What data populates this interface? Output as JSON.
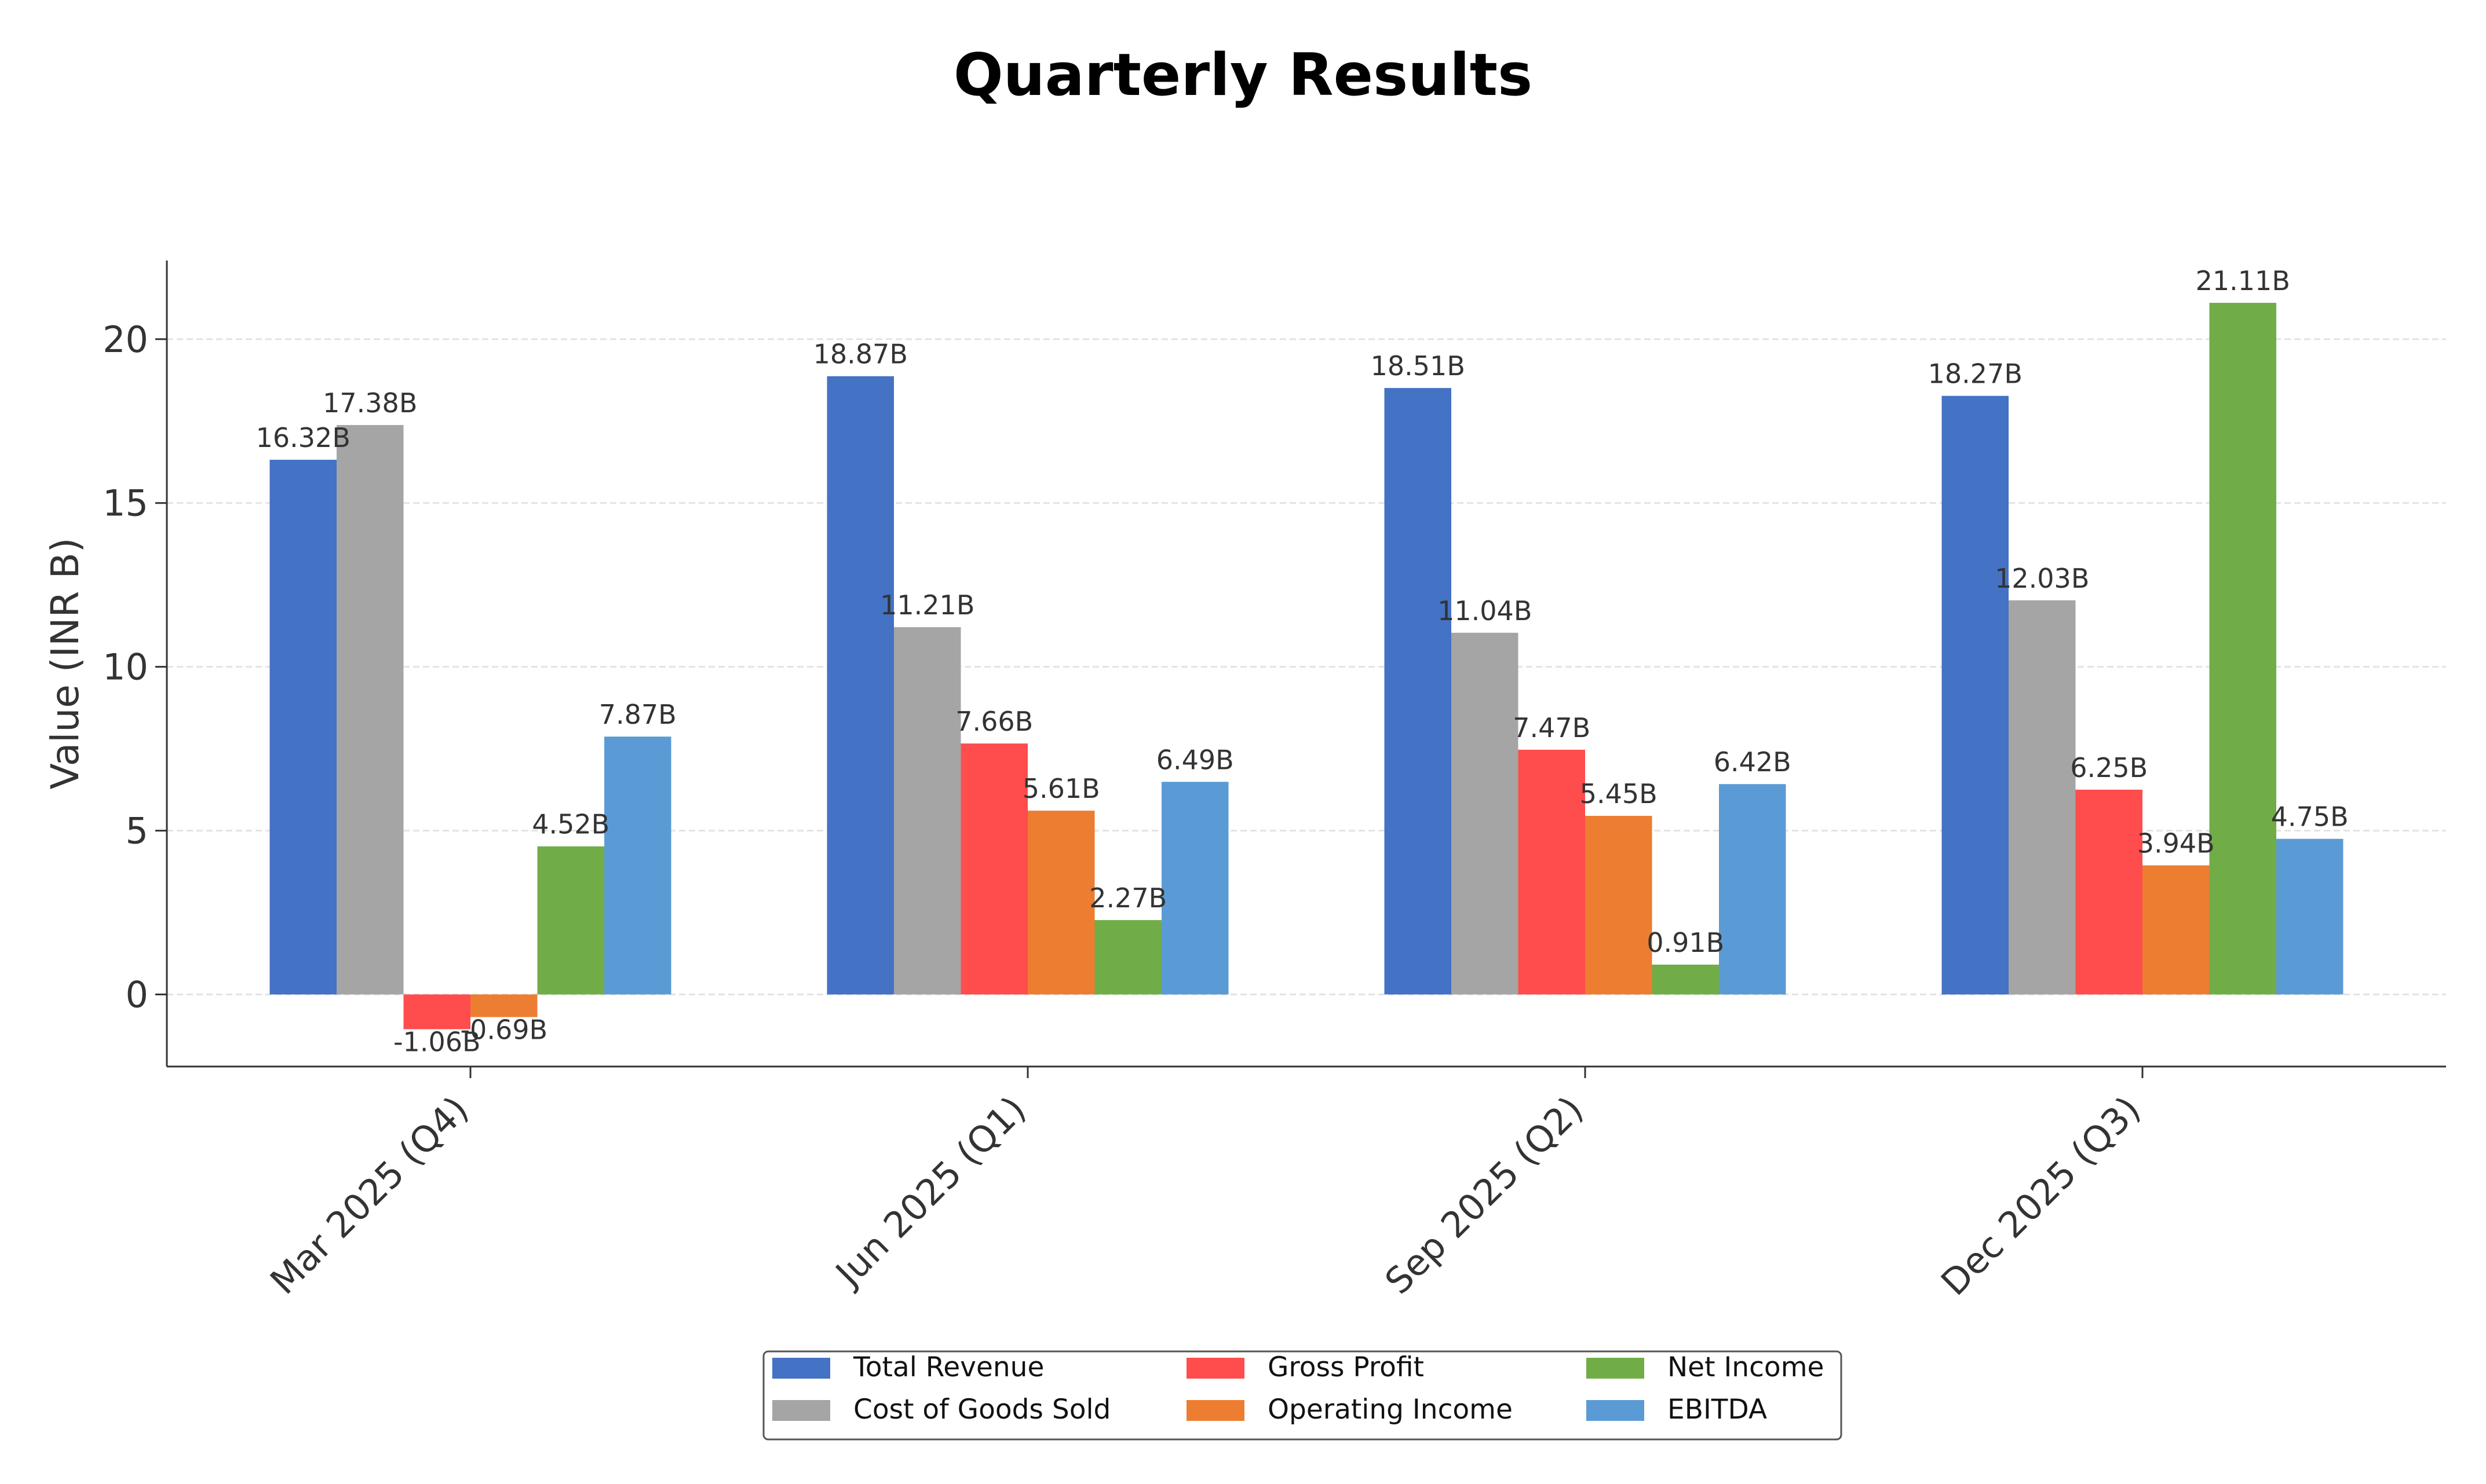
{
  "chart_data": {
    "type": "bar",
    "title": "Quarterly Results",
    "xlabel": "",
    "ylabel": "Value (INR B)",
    "categories": [
      "Mar 2025 (Q4)",
      "Jun 2025 (Q1)",
      "Sep 2025 (Q2)",
      "Dec 2025 (Q3)"
    ],
    "series": [
      {
        "name": "Total Revenue",
        "color": "#4472C4",
        "values": [
          16.32,
          18.87,
          18.51,
          18.27
        ],
        "labels": [
          "16.32B",
          "18.87B",
          "18.51B",
          "18.27B"
        ]
      },
      {
        "name": "Cost of Goods Sold",
        "color": "#A5A5A5",
        "values": [
          17.38,
          11.21,
          11.04,
          12.03
        ],
        "labels": [
          "17.38B",
          "11.21B",
          "11.04B",
          "12.03B"
        ]
      },
      {
        "name": "Gross Profit",
        "color": "#FF4C4C",
        "values": [
          -1.06,
          7.66,
          7.47,
          6.25
        ],
        "labels": [
          "-1.06B",
          "7.66B",
          "7.47B",
          "6.25B"
        ]
      },
      {
        "name": "Operating Income",
        "color": "#ED7D31",
        "values": [
          -0.69,
          5.61,
          5.45,
          3.94
        ],
        "labels": [
          "-0.69B",
          "5.61B",
          "5.45B",
          "3.94B"
        ]
      },
      {
        "name": "Net Income",
        "color": "#70AD47",
        "values": [
          4.52,
          2.27,
          0.91,
          21.11
        ],
        "labels": [
          "4.52B",
          "2.27B",
          "0.91B",
          "21.11B"
        ]
      },
      {
        "name": "EBITDA",
        "color": "#5B9BD5",
        "values": [
          7.87,
          6.49,
          6.42,
          4.75
        ],
        "labels": [
          "7.87B",
          "6.49B",
          "6.42B",
          "4.75B"
        ]
      }
    ],
    "ylim": [
      -2.2,
      22.4
    ],
    "yticks": [
      0,
      5,
      10,
      15,
      20
    ],
    "grid": true,
    "legend_position": "bottom-center"
  }
}
